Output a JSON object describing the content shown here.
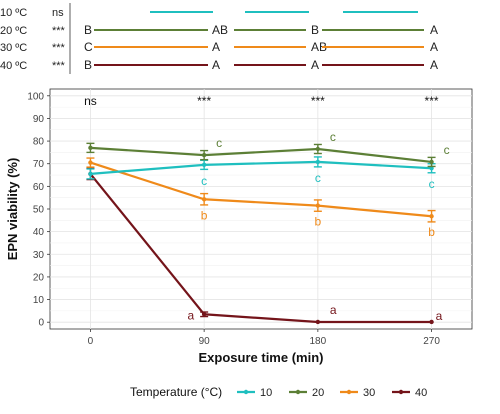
{
  "chart_data": {
    "type": "line",
    "ylabel": "EPN viability (%)",
    "xlabel": "Exposure time (min)",
    "x": [
      0,
      90,
      180,
      270
    ],
    "xlim": [
      -32,
      302
    ],
    "ylim": [
      -3,
      103
    ],
    "y_ticks": [
      0,
      10,
      20,
      30,
      40,
      50,
      60,
      70,
      80,
      90,
      100
    ],
    "grid": true,
    "legend_position": "bottom",
    "legend_title": "Temperature (°C)",
    "series": [
      {
        "name": "10",
        "color": "#1fbfbf",
        "values": [
          65.5,
          69.5,
          70.8,
          68.0
        ],
        "errors": [
          2.2,
          2.0,
          2.2,
          2.0
        ],
        "letters": [
          "",
          "c",
          "c",
          "c"
        ],
        "letter_pos": [
          "",
          "below",
          "below",
          "below"
        ]
      },
      {
        "name": "20",
        "color": "#5c7f36",
        "values": [
          77.0,
          73.8,
          76.5,
          70.8
        ],
        "errors": [
          2.0,
          2.0,
          2.0,
          2.0
        ],
        "letters": [
          "",
          "c",
          "c",
          "c"
        ],
        "letter_pos": [
          "",
          "above",
          "above",
          "above"
        ]
      },
      {
        "name": "30",
        "color": "#ef8a1a",
        "values": [
          70.5,
          54.3,
          51.5,
          46.8
        ],
        "errors": [
          2.0,
          2.5,
          2.5,
          2.5
        ],
        "letters": [
          "",
          "b",
          "b",
          "b"
        ],
        "letter_pos": [
          "",
          "below",
          "below",
          "below"
        ]
      },
      {
        "name": "40",
        "color": "#74141a",
        "values": [
          65.5,
          3.5,
          0.1,
          0.1
        ],
        "errors": [
          2.5,
          1.0,
          0.0,
          0.0
        ],
        "letters": [
          "",
          "a",
          "a",
          "a"
        ],
        "letter_pos": [
          "",
          "left",
          "above",
          "right"
        ]
      }
    ],
    "significance": [
      "ns",
      "***",
      "***",
      "***"
    ]
  },
  "comparison_panel": {
    "rows": [
      {
        "label": "10 ºC",
        "color": "#1fbfbf",
        "sig": "ns",
        "letters": [
          "",
          "",
          "",
          ""
        ]
      },
      {
        "label": "20 ºC",
        "color": "#5c7f36",
        "sig": "***",
        "letters": [
          "B",
          "AB",
          "B",
          "A"
        ]
      },
      {
        "label": "30 ºC",
        "color": "#ef8a1a",
        "sig": "***",
        "letters": [
          "C",
          "A",
          "AB",
          "A"
        ]
      },
      {
        "label": "40 ºC",
        "color": "#74141a",
        "sig": "***",
        "letters": [
          "B",
          "A",
          "A",
          "A"
        ]
      }
    ]
  }
}
